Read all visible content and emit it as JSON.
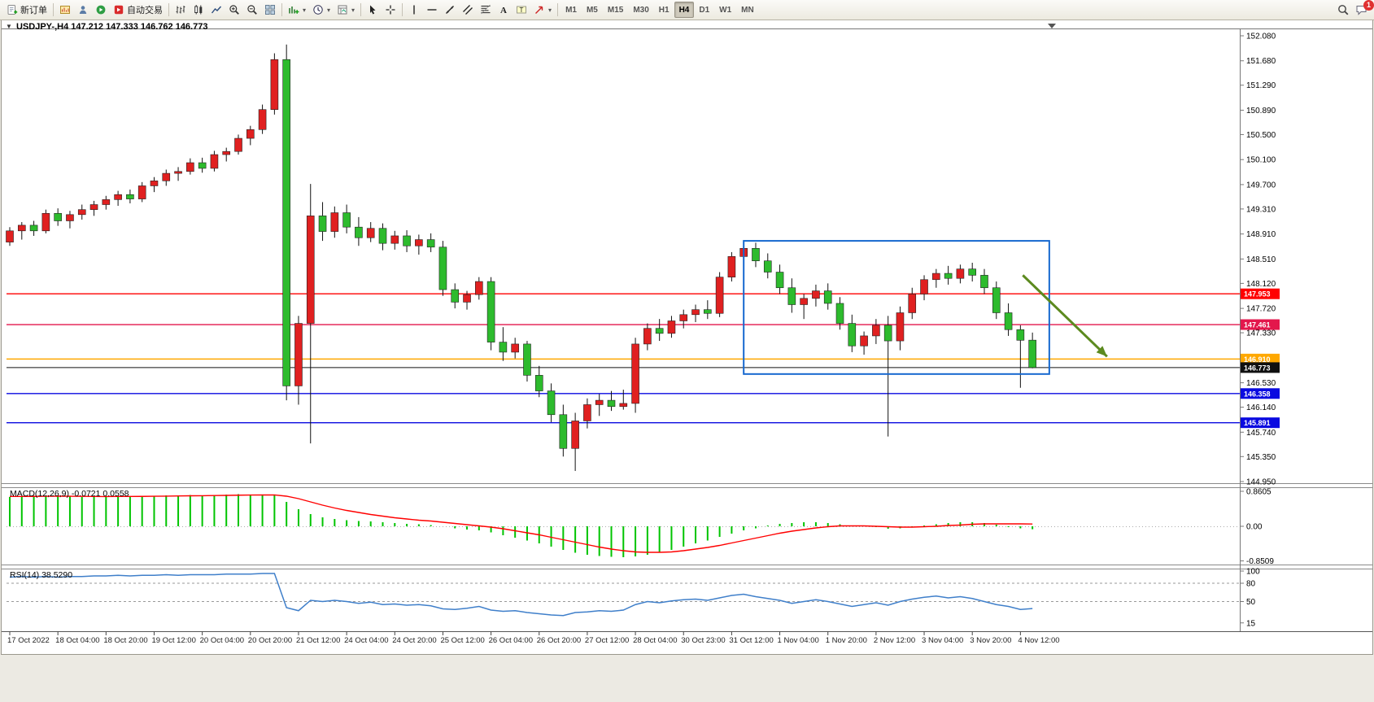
{
  "toolbar": {
    "new_order_label": "新订单",
    "autotrading_label": "自动交易",
    "timeframes": [
      "M1",
      "M5",
      "M15",
      "M30",
      "H1",
      "H4",
      "D1",
      "W1",
      "MN"
    ],
    "active_timeframe": "H4",
    "notification_count": "1"
  },
  "icons": {
    "dropdown": "▾",
    "collapse": "▼"
  },
  "chart": {
    "title": "USDJPY-,H4 147.212 147.333 146.762 146.773",
    "symbol": "USDJPY-",
    "period": "H4",
    "current": {
      "open": "147.212",
      "high": "147.333",
      "low": "146.762",
      "close": "146.773"
    }
  },
  "indicators": {
    "macd_label": "MACD(12,26,9) -0.0721 0.0558",
    "rsi_label": "RSI(14) 38.5290"
  },
  "chart_data": {
    "type": "candlestick",
    "symbol": "USDJPY-",
    "timeframe": "H4",
    "price_axis_ticks": [
      "152.080",
      "151.680",
      "151.290",
      "150.890",
      "150.500",
      "150.100",
      "149.700",
      "149.310",
      "148.910",
      "148.510",
      "148.120",
      "147.720",
      "147.330",
      "146.930",
      "146.530",
      "146.140",
      "145.740",
      "145.350",
      "144.950"
    ],
    "time_labels": {
      "start_index": 0,
      "step": 4,
      "labels": [
        "17 Oct 2022",
        "18 Oct 04:00",
        "18 Oct 20:00",
        "19 Oct 12:00",
        "20 Oct 04:00",
        "20 Oct 20:00",
        "21 Oct 12:00",
        "24 Oct 04:00",
        "24 Oct 20:00",
        "25 Oct 12:00",
        "26 Oct 04:00",
        "26 Oct 20:00",
        "27 Oct 12:00",
        "28 Oct 04:00",
        "30 Oct 23:00",
        "31 Oct 12:00",
        "1 Nov 04:00",
        "1 Nov 20:00",
        "2 Nov 12:00",
        "3 Nov 04:00",
        "3 Nov 20:00",
        "4 Nov 12:00"
      ]
    },
    "candle_colors": {
      "bull": "#e02020",
      "bear": "#2dbb2d",
      "wick": "#111111"
    },
    "candles": [
      [
        148.78,
        149.02,
        148.72,
        148.96
      ],
      [
        148.96,
        149.1,
        148.82,
        149.05
      ],
      [
        149.05,
        149.12,
        148.88,
        148.96
      ],
      [
        148.96,
        149.3,
        148.92,
        149.24
      ],
      [
        149.24,
        149.32,
        149.04,
        149.12
      ],
      [
        149.12,
        149.28,
        149.0,
        149.22
      ],
      [
        149.22,
        149.38,
        149.14,
        149.3
      ],
      [
        149.3,
        149.44,
        149.2,
        149.38
      ],
      [
        149.38,
        149.52,
        149.3,
        149.46
      ],
      [
        149.46,
        149.6,
        149.36,
        149.54
      ],
      [
        149.54,
        149.62,
        149.4,
        149.47
      ],
      [
        149.47,
        149.74,
        149.42,
        149.68
      ],
      [
        149.68,
        149.82,
        149.58,
        149.76
      ],
      [
        149.76,
        149.94,
        149.68,
        149.88
      ],
      [
        149.88,
        149.98,
        149.76,
        149.91
      ],
      [
        149.91,
        150.12,
        149.86,
        150.05
      ],
      [
        150.05,
        150.13,
        149.89,
        149.96
      ],
      [
        149.96,
        150.24,
        149.91,
        150.18
      ],
      [
        150.18,
        150.29,
        150.07,
        150.23
      ],
      [
        150.23,
        150.5,
        150.18,
        150.44
      ],
      [
        150.44,
        150.64,
        150.33,
        150.58
      ],
      [
        150.58,
        150.98,
        150.51,
        150.9
      ],
      [
        150.9,
        151.8,
        150.82,
        151.7
      ],
      [
        151.7,
        151.94,
        146.25,
        146.48
      ],
      [
        146.48,
        147.6,
        146.18,
        147.48
      ],
      [
        147.48,
        149.71,
        145.56,
        149.2
      ],
      [
        149.2,
        149.42,
        148.8,
        148.95
      ],
      [
        148.95,
        149.35,
        148.85,
        149.25
      ],
      [
        149.25,
        149.38,
        148.92,
        149.02
      ],
      [
        149.02,
        149.18,
        148.72,
        148.85
      ],
      [
        148.85,
        149.1,
        148.78,
        149.0
      ],
      [
        149.0,
        149.08,
        148.65,
        148.76
      ],
      [
        148.76,
        148.96,
        148.66,
        148.88
      ],
      [
        148.88,
        148.97,
        148.62,
        148.72
      ],
      [
        148.72,
        148.9,
        148.58,
        148.82
      ],
      [
        148.82,
        148.92,
        148.62,
        148.7
      ],
      [
        148.7,
        148.8,
        147.92,
        148.02
      ],
      [
        148.02,
        148.12,
        147.72,
        147.82
      ],
      [
        147.82,
        148.0,
        147.7,
        147.94
      ],
      [
        147.94,
        148.22,
        147.86,
        148.15
      ],
      [
        148.15,
        148.22,
        147.05,
        147.18
      ],
      [
        147.18,
        147.42,
        146.88,
        147.02
      ],
      [
        147.02,
        147.25,
        146.92,
        147.15
      ],
      [
        147.15,
        147.2,
        146.55,
        146.65
      ],
      [
        146.65,
        146.8,
        146.3,
        146.4
      ],
      [
        146.4,
        146.52,
        145.9,
        146.02
      ],
      [
        146.02,
        146.18,
        145.35,
        145.48
      ],
      [
        145.48,
        146.05,
        145.12,
        145.92
      ],
      [
        145.92,
        146.28,
        145.8,
        146.18
      ],
      [
        146.18,
        146.35,
        146.0,
        146.25
      ],
      [
        146.25,
        146.4,
        146.08,
        146.15
      ],
      [
        146.15,
        146.42,
        146.1,
        146.2
      ],
      [
        146.2,
        147.25,
        146.05,
        147.15
      ],
      [
        147.15,
        147.48,
        147.05,
        147.4
      ],
      [
        147.4,
        147.55,
        147.2,
        147.32
      ],
      [
        147.32,
        147.6,
        147.25,
        147.52
      ],
      [
        147.52,
        147.7,
        147.4,
        147.62
      ],
      [
        147.62,
        147.78,
        147.5,
        147.7
      ],
      [
        147.7,
        147.85,
        147.55,
        147.64
      ],
      [
        147.64,
        148.3,
        147.58,
        148.22
      ],
      [
        148.22,
        148.62,
        148.15,
        148.55
      ],
      [
        148.55,
        148.75,
        148.45,
        148.68
      ],
      [
        148.68,
        148.77,
        148.38,
        148.48
      ],
      [
        148.48,
        148.6,
        148.2,
        148.3
      ],
      [
        148.3,
        148.42,
        147.95,
        148.05
      ],
      [
        148.05,
        148.2,
        147.65,
        147.78
      ],
      [
        147.78,
        147.95,
        147.55,
        147.88
      ],
      [
        147.88,
        148.1,
        147.75,
        148.0
      ],
      [
        148.0,
        148.12,
        147.7,
        147.8
      ],
      [
        147.8,
        147.9,
        147.38,
        147.48
      ],
      [
        147.48,
        147.62,
        147.02,
        147.12
      ],
      [
        147.12,
        147.35,
        146.98,
        147.28
      ],
      [
        147.28,
        147.55,
        147.15,
        147.45
      ],
      [
        147.45,
        147.6,
        145.67,
        147.2
      ],
      [
        147.2,
        147.75,
        147.05,
        147.65
      ],
      [
        147.65,
        148.05,
        147.55,
        147.95
      ],
      [
        147.95,
        148.25,
        147.85,
        148.18
      ],
      [
        148.18,
        148.35,
        148.05,
        148.28
      ],
      [
        148.28,
        148.4,
        148.1,
        148.2
      ],
      [
        148.2,
        148.42,
        148.12,
        148.35
      ],
      [
        148.35,
        148.45,
        148.15,
        148.25
      ],
      [
        148.25,
        148.35,
        147.95,
        148.05
      ],
      [
        148.05,
        148.15,
        147.55,
        147.65
      ],
      [
        147.65,
        147.8,
        147.28,
        147.38
      ],
      [
        147.38,
        147.45,
        146.45,
        147.21
      ],
      [
        147.212,
        147.333,
        146.762,
        146.773
      ]
    ],
    "horizontal_lines": [
      {
        "price": 147.953,
        "label": "147.953",
        "color": "#ff0000"
      },
      {
        "price": 147.461,
        "label": "147.461",
        "color": "#e3174c"
      },
      {
        "price": 146.91,
        "label": "146.910",
        "color": "#ffa800"
      },
      {
        "price": 146.773,
        "label": "146.773",
        "color": "#101010",
        "role": "current-price"
      },
      {
        "price": 146.358,
        "label": "146.358",
        "color": "#0a0ae0"
      },
      {
        "price": 145.891,
        "label": "145.891",
        "color": "#0a0ae0"
      }
    ],
    "annotations": {
      "rectangle": {
        "from_index": 61.0,
        "to_index": 86.4,
        "top_price": 148.8,
        "bottom_price": 146.67,
        "color": "#1668cf"
      },
      "arrow": {
        "from_index": 84.2,
        "from_price": 148.25,
        "to_index": 91.2,
        "to_price": 146.95,
        "color": "#5c8a1f"
      }
    },
    "macd": {
      "params": "12,26,9",
      "value_main": -0.0721,
      "value_signal": 0.0558,
      "axis_ticks": [
        "0.8605",
        "0.00",
        "-0.8509"
      ],
      "max": 0.8605,
      "min": -0.8509,
      "hist_color": "#00c400",
      "signal_color": "#ff0000",
      "histogram": [
        0.72,
        0.73,
        0.74,
        0.75,
        0.74,
        0.73,
        0.72,
        0.72,
        0.73,
        0.74,
        0.73,
        0.74,
        0.75,
        0.76,
        0.76,
        0.77,
        0.76,
        0.77,
        0.78,
        0.79,
        0.78,
        0.77,
        0.78,
        0.6,
        0.42,
        0.3,
        0.22,
        0.18,
        0.15,
        0.13,
        0.12,
        0.1,
        0.08,
        0.06,
        0.05,
        0.03,
        0.0,
        -0.05,
        -0.08,
        -0.1,
        -0.15,
        -0.22,
        -0.28,
        -0.35,
        -0.42,
        -0.5,
        -0.58,
        -0.65,
        -0.7,
        -0.73,
        -0.75,
        -0.76,
        -0.74,
        -0.7,
        -0.65,
        -0.58,
        -0.5,
        -0.42,
        -0.35,
        -0.26,
        -0.18,
        -0.1,
        -0.05,
        0.02,
        0.06,
        0.08,
        0.1,
        0.1,
        0.08,
        0.05,
        0.02,
        0.0,
        -0.02,
        -0.06,
        -0.05,
        -0.02,
        0.02,
        0.05,
        0.08,
        0.1,
        0.1,
        0.08,
        0.04,
        -0.02,
        -0.05,
        -0.0721
      ],
      "signal": [
        0.734,
        0.733,
        0.735,
        0.738,
        0.74,
        0.739,
        0.736,
        0.733,
        0.732,
        0.733,
        0.734,
        0.735,
        0.738,
        0.742,
        0.746,
        0.75,
        0.752,
        0.756,
        0.76,
        0.765,
        0.768,
        0.77,
        0.772,
        0.74,
        0.68,
        0.6,
        0.52,
        0.45,
        0.39,
        0.34,
        0.29,
        0.25,
        0.21,
        0.18,
        0.15,
        0.13,
        0.1,
        0.07,
        0.04,
        0.01,
        -0.02,
        -0.06,
        -0.11,
        -0.16,
        -0.21,
        -0.27,
        -0.33,
        -0.39,
        -0.45,
        -0.51,
        -0.56,
        -0.6,
        -0.63,
        -0.64,
        -0.64,
        -0.63,
        -0.6,
        -0.56,
        -0.52,
        -0.47,
        -0.41,
        -0.35,
        -0.29,
        -0.23,
        -0.17,
        -0.12,
        -0.08,
        -0.04,
        -0.01,
        0.01,
        0.01,
        0.01,
        0.0,
        -0.01,
        -0.02,
        -0.02,
        -0.01,
        0.0,
        0.02,
        0.03,
        0.05,
        0.06,
        0.06,
        0.06,
        0.06,
        0.0558
      ]
    },
    "rsi": {
      "period": 14,
      "value": 38.529,
      "axis_ticks": [
        "100",
        "80",
        "50",
        "15"
      ],
      "levels": [
        80,
        50
      ],
      "color": "#3f7fca",
      "values": [
        90,
        91,
        90,
        91,
        90,
        91,
        91,
        92,
        92,
        93,
        92,
        93,
        93,
        94,
        93,
        94,
        94,
        94,
        95,
        95,
        95,
        96,
        96,
        40,
        35,
        52,
        50,
        52,
        50,
        47,
        49,
        45,
        46,
        44,
        45,
        43,
        38,
        37,
        39,
        42,
        36,
        34,
        35,
        32,
        30,
        28,
        27,
        32,
        33,
        35,
        34,
        36,
        45,
        50,
        48,
        51,
        53,
        54,
        52,
        56,
        60,
        62,
        58,
        55,
        52,
        47,
        50,
        53,
        50,
        46,
        42,
        45,
        48,
        44,
        50,
        54,
        57,
        59,
        56,
        58,
        55,
        50,
        45,
        42,
        37,
        38.53
      ]
    }
  }
}
